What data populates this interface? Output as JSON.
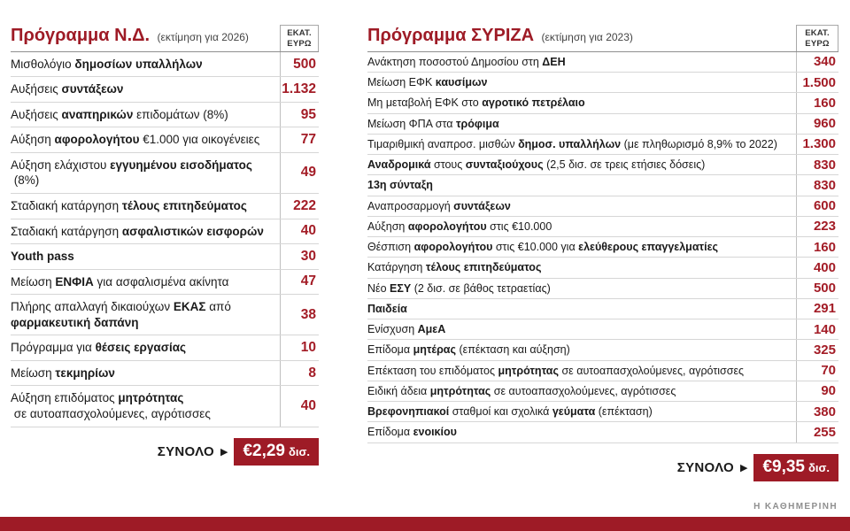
{
  "accent_color": "#9e1b26",
  "footer": {
    "brand": "Η ΚΑΘΗΜΕΡΙΝΗ"
  },
  "panels": [
    {
      "title": "Πρόγραμμα Ν.Δ.",
      "subtitle": "(εκτίμηση για 2026)",
      "unit_label": "ΕΚΑΤ.\nΕΥΡΩ",
      "total_label": "ΣΥΝΟΛΟ",
      "total_amount": "€2,29",
      "total_unit": "δισ.",
      "rows": [
        {
          "label": "Μισθολόγιο **δημοσίων υπαλλήλων**",
          "value": "500"
        },
        {
          "label": "Αυξήσεις **συντάξεων**",
          "value": "1.132"
        },
        {
          "label": "Αυξήσεις **αναπηρικών** επιδομάτων (8%)",
          "value": "95"
        },
        {
          "label": "Αύξηση **αφορολογήτου** €1.000 για οικογένειες",
          "value": "77"
        },
        {
          "label": "Αύξηση ελάχιστου **εγγυημένου εισοδήματος** (8%)",
          "value": "49"
        },
        {
          "label": "Σταδιακή κατάργηση **τέλους επιτηδεύματος**",
          "value": "222"
        },
        {
          "label": "Σταδιακή κατάργηση **ασφαλιστικών εισφορών**",
          "value": "40"
        },
        {
          "label": "**Youth pass**",
          "value": "30"
        },
        {
          "label": "Μείωση **ΕΝΦΙΑ** για ασφαλισμένα ακίνητα",
          "value": "47"
        },
        {
          "label": "Πλήρης απαλλαγή δικαιούχων **ΕΚΑΣ** από **φαρμακευτική δαπάνη**",
          "value": "38"
        },
        {
          "label": "Πρόγραμμα για **θέσεις εργασίας**",
          "value": "10"
        },
        {
          "label": "Μείωση **τεκμηρίων**",
          "value": "8"
        },
        {
          "label": "Αύξηση επιδόματος **μητρότητας** σε αυτοαπασχολούμενες, αγρότισσες",
          "value": "40"
        }
      ]
    },
    {
      "title": "Πρόγραμμα ΣΥΡΙΖΑ",
      "subtitle": "(εκτίμηση για 2023)",
      "unit_label": "ΕΚΑΤ.\nΕΥΡΩ",
      "total_label": "ΣΥΝΟΛΟ",
      "total_amount": "€9,35",
      "total_unit": "δισ.",
      "rows": [
        {
          "label": "Ανάκτηση ποσοστού Δημοσίου στη **ΔΕΗ**",
          "value": "340"
        },
        {
          "label": "Μείωση ΕΦΚ **καυσίμων**",
          "value": "1.500"
        },
        {
          "label": "Μη μεταβολή ΕΦΚ στο **αγροτικό πετρέλαιο**",
          "value": "160"
        },
        {
          "label": "Μείωση ΦΠΑ στα **τρόφιμα**",
          "value": "960"
        },
        {
          "label": "Τιμαριθμική αναπροσ. μισθών **δημοσ. υπαλλήλων** (με πληθωρισμό 8,9% το 2022)",
          "value": "1.300"
        },
        {
          "label": "**Αναδρομικά** στους **συνταξιούχους** (2,5 δισ. σε τρεις ετήσιες δόσεις)",
          "value": "830"
        },
        {
          "label": "**13η σύνταξη**",
          "value": "830"
        },
        {
          "label": "Αναπροσαρμογή **συντάξεων**",
          "value": "600"
        },
        {
          "label": "Αύξηση **αφορολογήτου** στις €10.000",
          "value": "223"
        },
        {
          "label": "Θέσπιση **αφορολογήτου** στις €10.000 για **ελεύθερους επαγγελματίες**",
          "value": "160"
        },
        {
          "label": "Κατάργηση **τέλους επιτηδεύματος**",
          "value": "400"
        },
        {
          "label": "Νέο **ΕΣΥ** (2 δισ. σε βάθος τετραετίας)",
          "value": "500"
        },
        {
          "label": "**Παιδεία**",
          "value": "291"
        },
        {
          "label": "Ενίσχυση **ΑμεΑ**",
          "value": "140"
        },
        {
          "label": "Επίδομα **μητέρας** (επέκταση και αύξηση)",
          "value": "325"
        },
        {
          "label": "Επέκταση του επιδόματος **μητρότητας** σε αυτοαπασχολούμενες, αγρότισσες",
          "value": "70"
        },
        {
          "label": "Ειδική άδεια **μητρότητας** σε αυτοαπασχολούμενες, αγρότισσες",
          "value": "90"
        },
        {
          "label": "**Βρεφονηπιακοί** σταθμοί και σχολικά **γεύματα** (επέκταση)",
          "value": "380"
        },
        {
          "label": "Επίδομα **ενοικίου**",
          "value": "255"
        }
      ]
    }
  ],
  "chart_data": [
    {
      "type": "table",
      "title": "Πρόγραμμα Ν.Δ. (εκτίμηση για 2026)",
      "unit": "ΕΚΑΤ. ΕΥΡΩ",
      "categories": [
        "Μισθολόγιο δημοσίων υπαλλήλων",
        "Αυξήσεις συντάξεων",
        "Αυξήσεις αναπηρικών επιδομάτων (8%)",
        "Αύξηση αφορολογήτου €1.000 για οικογένειες",
        "Αύξηση ελάχιστου εγγυημένου εισοδήματος (8%)",
        "Σταδιακή κατάργηση τέλους επιτηδεύματος",
        "Σταδιακή κατάργηση ασφαλιστικών εισφορών",
        "Youth pass",
        "Μείωση ΕΝΦΙΑ για ασφαλισμένα ακίνητα",
        "Πλήρης απαλλαγή δικαιούχων ΕΚΑΣ από φαρμακευτική δαπάνη",
        "Πρόγραμμα για θέσεις εργασίας",
        "Μείωση τεκμηρίων",
        "Αύξηση επιδόματος μητρότητας σε αυτοαπασχολούμενες, αγρότισσες"
      ],
      "values": [
        500,
        1132,
        95,
        77,
        49,
        222,
        40,
        30,
        47,
        38,
        10,
        8,
        40
      ],
      "total_label": "ΣΥΝΟΛΟ",
      "total": "€2,29 δισ."
    },
    {
      "type": "table",
      "title": "Πρόγραμμα ΣΥΡΙΖΑ (εκτίμηση για 2023)",
      "unit": "ΕΚΑΤ. ΕΥΡΩ",
      "categories": [
        "Ανάκτηση ποσοστού Δημοσίου στη ΔΕΗ",
        "Μείωση ΕΦΚ καυσίμων",
        "Μη μεταβολή ΕΦΚ στο αγροτικό πετρέλαιο",
        "Μείωση ΦΠΑ στα τρόφιμα",
        "Τιμαριθμική αναπροσ. μισθών δημοσ. υπαλλήλων (με πληθωρισμό 8,9% το 2022)",
        "Αναδρομικά στους συνταξιούχους (2,5 δισ. σε τρεις ετήσιες δόσεις)",
        "13η σύνταξη",
        "Αναπροσαρμογή συντάξεων",
        "Αύξηση αφορολογήτου στις €10.000",
        "Θέσπιση αφορολογήτου στις €10.000 για ελεύθερους επαγγελματίες",
        "Κατάργηση τέλους επιτηδεύματος",
        "Νέο ΕΣΥ (2 δισ. σε βάθος τετραετίας)",
        "Παιδεία",
        "Ενίσχυση ΑμεΑ",
        "Επίδομα μητέρας (επέκταση και αύξηση)",
        "Επέκταση του επιδόματος μητρότητας σε αυτοαπασχολούμενες, αγρότισσες",
        "Ειδική άδεια μητρότητας σε αυτοαπασχολούμενες, αγρότισσες",
        "Βρεφονηπιακοί σταθμοί και σχολικά γεύματα (επέκταση)",
        "Επίδομα ενοικίου"
      ],
      "values": [
        340,
        1500,
        160,
        960,
        1300,
        830,
        830,
        600,
        223,
        160,
        400,
        500,
        291,
        140,
        325,
        70,
        90,
        380,
        255
      ],
      "total_label": "ΣΥΝΟΛΟ",
      "total": "€9,35 δισ."
    }
  ]
}
